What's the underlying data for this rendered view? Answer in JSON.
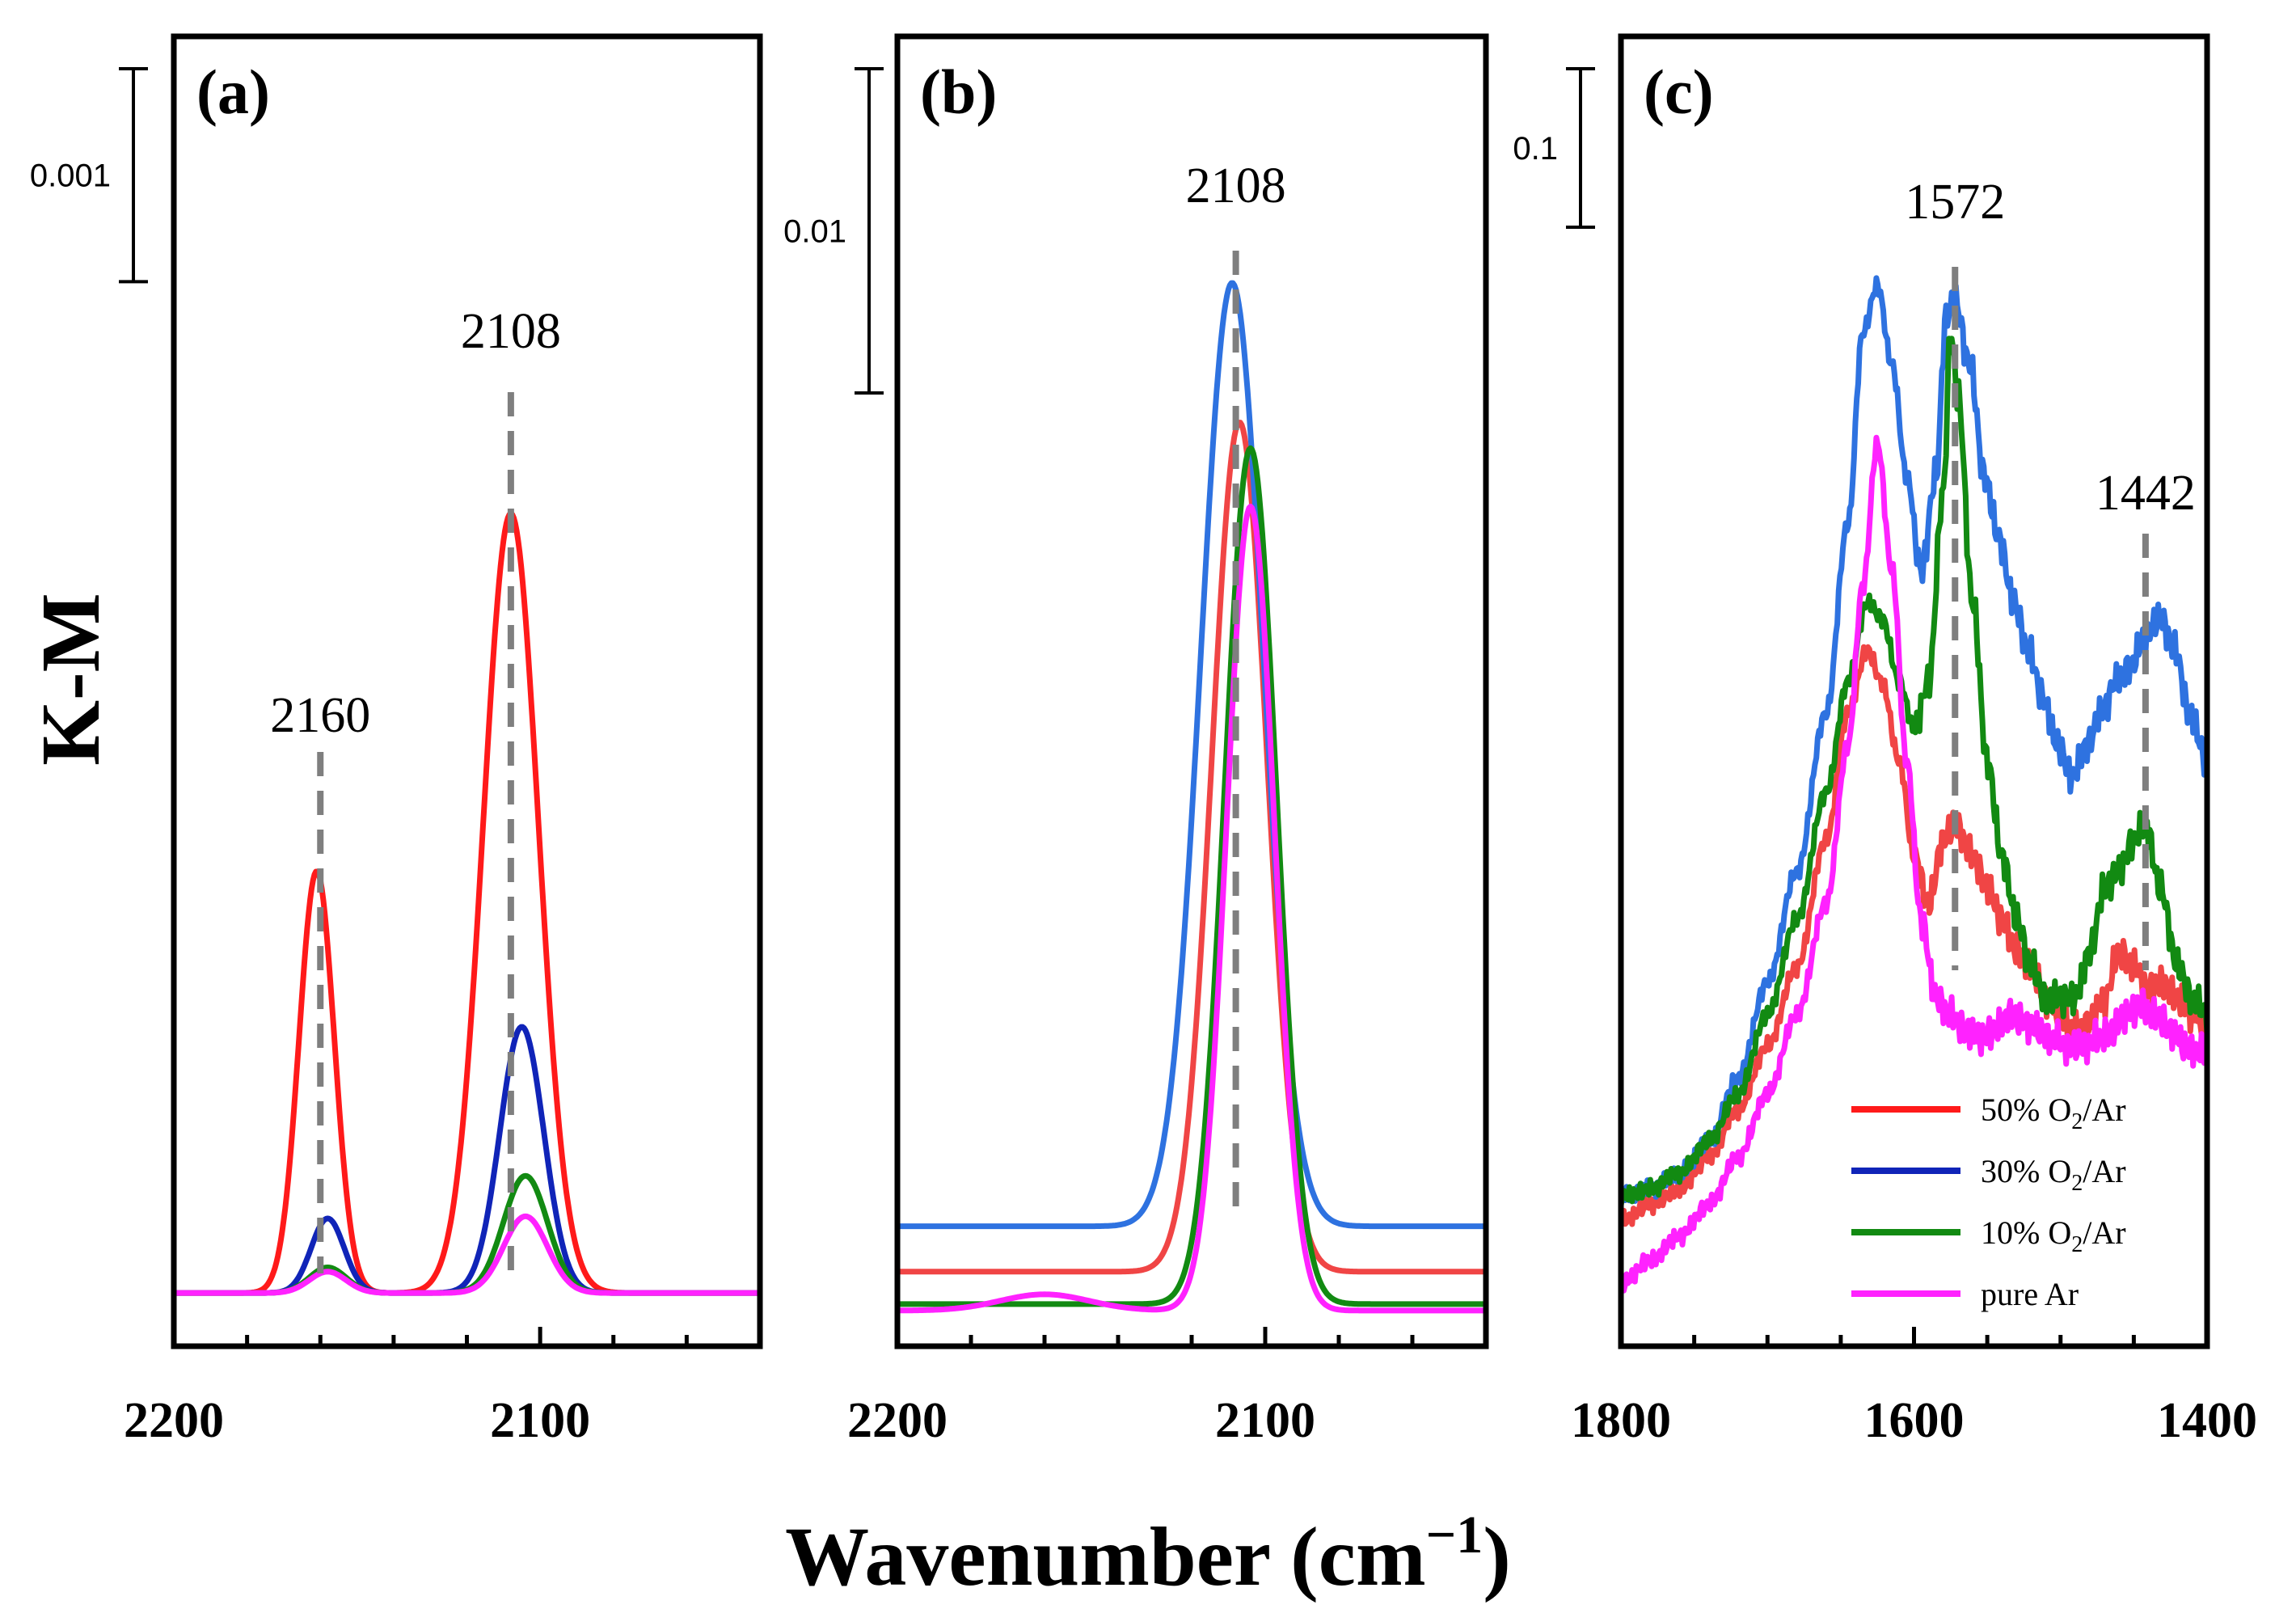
{
  "figure": {
    "xlabel_main": "Wavenumber (cm",
    "xlabel_sup": "−1",
    "xlabel_close": ")",
    "ylabel": "K-M"
  },
  "legend": [
    {
      "label_main": "50% O",
      "label_sub": "2",
      "label_end": "/Ar",
      "color": "#ff1a1a"
    },
    {
      "label_main": "30% O",
      "label_sub": "2",
      "label_end": "/Ar",
      "color": "#1024b8"
    },
    {
      "label_main": "10% O",
      "label_sub": "2",
      "label_end": "/Ar",
      "color": "#128a12"
    },
    {
      "label_main": "pure Ar",
      "label_sub": "",
      "label_end": "",
      "color": "#ff22ff"
    }
  ],
  "chart_data": [
    {
      "panel": "(a)",
      "type": "line",
      "xlim": [
        2200,
        2040
      ],
      "ylim": [
        -0.00025,
        0.0059
      ],
      "xticks": [
        2200,
        2100
      ],
      "scale_bar": {
        "label": "0.001",
        "value": 0.001
      },
      "peaks": [
        {
          "label": "2160",
          "x": 2160
        },
        {
          "label": "2108",
          "x": 2108
        }
      ],
      "series": [
        {
          "name": "50% O2/Ar",
          "color": "#ff1a1a",
          "baseline": 0,
          "peaks": [
            [
              2161,
              0.00198,
              4.8
            ],
            [
              2108,
              0.00366,
              7.5
            ]
          ]
        },
        {
          "name": "30% O2/Ar",
          "color": "#1024b8",
          "baseline": 0,
          "peaks": [
            [
              2158,
              0.00035,
              4.5
            ],
            [
              2105,
              0.00125,
              6
            ]
          ]
        },
        {
          "name": "10% O2/Ar",
          "color": "#128a12",
          "baseline": 0,
          "peaks": [
            [
              2158,
              0.00012,
              5
            ],
            [
              2104,
              0.00055,
              6
            ]
          ]
        },
        {
          "name": "pure Ar",
          "color": "#ff22ff",
          "baseline": 0,
          "peaks": [
            [
              2158,
              0.0001,
              5
            ],
            [
              2104,
              0.00036,
              6
            ]
          ]
        }
      ]
    },
    {
      "panel": "(b)",
      "type": "line",
      "xlim": [
        2200,
        2040
      ],
      "ylim": [
        -0.0011,
        0.0393
      ],
      "xticks": [
        2200,
        2100
      ],
      "scale_bar": {
        "label": "0.01",
        "value": 0.01
      },
      "peaks": [
        {
          "label": "2108",
          "x": 2108
        }
      ],
      "series": [
        {
          "name": "50% O2/Ar",
          "color": "#f04545",
          "baseline": 0.0012,
          "peaks": [
            [
              2107,
              0.0262,
              7.5
            ]
          ]
        },
        {
          "name": "30% O2/Ar",
          "color": "#2e72e0",
          "baseline": 0.0026,
          "peaks": [
            [
              2109,
              0.0291,
              8.5
            ]
          ]
        },
        {
          "name": "10% O2/Ar",
          "color": "#128a12",
          "baseline": 0.0002,
          "peaks": [
            [
              2104,
              0.0264,
              7
            ]
          ]
        },
        {
          "name": "pure Ar",
          "color": "#ff22ff",
          "baseline": 0,
          "peaks": [
            [
              2104,
              0.0248,
              6.5
            ],
            [
              2160,
              0.0005,
              12
            ]
          ]
        }
      ]
    },
    {
      "panel": "(c)",
      "type": "line",
      "xlim": [
        1800,
        1400
      ],
      "ylim": [
        -0.0193,
        0.807
      ],
      "xticks": [
        1800,
        1600,
        1400
      ],
      "scale_bar": {
        "label": "0.1",
        "value": 0.1
      },
      "peaks": [
        {
          "label": "1572",
          "x": 1572
        },
        {
          "label": "1442",
          "x": 1442
        }
      ],
      "series": [
        {
          "name": "50% O2/Ar",
          "color": "#f04545",
          "points": [
            [
              1800,
              0.06
            ],
            [
              1780,
              0.07
            ],
            [
              1760,
              0.08
            ],
            [
              1740,
              0.1
            ],
            [
              1720,
              0.13
            ],
            [
              1700,
              0.17
            ],
            [
              1680,
              0.22
            ],
            [
              1660,
              0.3
            ],
            [
              1645,
              0.38
            ],
            [
              1632,
              0.42
            ],
            [
              1622,
              0.4
            ],
            [
              1610,
              0.35
            ],
            [
              1600,
              0.29
            ],
            [
              1590,
              0.26
            ],
            [
              1580,
              0.3
            ],
            [
              1572,
              0.31
            ],
            [
              1560,
              0.29
            ],
            [
              1550,
              0.27
            ],
            [
              1540,
              0.25
            ],
            [
              1530,
              0.23
            ],
            [
              1520,
              0.22
            ],
            [
              1510,
              0.2
            ],
            [
              1500,
              0.19
            ],
            [
              1490,
              0.18
            ],
            [
              1480,
              0.185
            ],
            [
              1470,
              0.2
            ],
            [
              1460,
              0.23
            ],
            [
              1450,
              0.22
            ],
            [
              1440,
              0.205
            ],
            [
              1430,
              0.21
            ],
            [
              1420,
              0.2
            ],
            [
              1410,
              0.19
            ],
            [
              1400,
              0.185
            ]
          ]
        },
        {
          "name": "30% O2/Ar",
          "color": "#2e72e0",
          "points": [
            [
              1800,
              0.075
            ],
            [
              1780,
              0.08
            ],
            [
              1760,
              0.09
            ],
            [
              1740,
              0.11
            ],
            [
              1720,
              0.15
            ],
            [
              1700,
              0.21
            ],
            [
              1680,
              0.28
            ],
            [
              1660,
              0.38
            ],
            [
              1645,
              0.5
            ],
            [
              1635,
              0.62
            ],
            [
              1625,
              0.65
            ],
            [
              1615,
              0.6
            ],
            [
              1605,
              0.53
            ],
            [
              1595,
              0.47
            ],
            [
              1585,
              0.53
            ],
            [
              1578,
              0.63
            ],
            [
              1572,
              0.64
            ],
            [
              1562,
              0.6
            ],
            [
              1552,
              0.53
            ],
            [
              1542,
              0.49
            ],
            [
              1532,
              0.45
            ],
            [
              1522,
              0.42
            ],
            [
              1512,
              0.39
            ],
            [
              1502,
              0.36
            ],
            [
              1492,
              0.34
            ],
            [
              1482,
              0.36
            ],
            [
              1472,
              0.38
            ],
            [
              1462,
              0.4
            ],
            [
              1452,
              0.41
            ],
            [
              1442,
              0.43
            ],
            [
              1432,
              0.44
            ],
            [
              1422,
              0.42
            ],
            [
              1412,
              0.38
            ],
            [
              1400,
              0.35
            ]
          ]
        },
        {
          "name": "10% O2/Ar",
          "color": "#128a12",
          "points": [
            [
              1800,
              0.075
            ],
            [
              1780,
              0.08
            ],
            [
              1760,
              0.09
            ],
            [
              1740,
              0.11
            ],
            [
              1720,
              0.14
            ],
            [
              1700,
              0.19
            ],
            [
              1680,
              0.25
            ],
            [
              1660,
              0.33
            ],
            [
              1645,
              0.4
            ],
            [
              1632,
              0.45
            ],
            [
              1622,
              0.44
            ],
            [
              1610,
              0.4
            ],
            [
              1600,
              0.37
            ],
            [
              1590,
              0.4
            ],
            [
              1580,
              0.52
            ],
            [
              1575,
              0.62
            ],
            [
              1570,
              0.58
            ],
            [
              1560,
              0.45
            ],
            [
              1550,
              0.35
            ],
            [
              1540,
              0.29
            ],
            [
              1530,
              0.25
            ],
            [
              1520,
              0.22
            ],
            [
              1510,
              0.2
            ],
            [
              1500,
              0.2
            ],
            [
              1490,
              0.2
            ],
            [
              1480,
              0.23
            ],
            [
              1470,
              0.27
            ],
            [
              1460,
              0.28
            ],
            [
              1450,
              0.3
            ],
            [
              1442,
              0.31
            ],
            [
              1432,
              0.27
            ],
            [
              1420,
              0.22
            ],
            [
              1410,
              0.2
            ],
            [
              1400,
              0.19
            ]
          ]
        },
        {
          "name": "pure Ar",
          "color": "#ff22ff",
          "points": [
            [
              1800,
              0.02
            ],
            [
              1780,
              0.035
            ],
            [
              1760,
              0.05
            ],
            [
              1740,
              0.07
            ],
            [
              1720,
              0.1
            ],
            [
              1700,
              0.14
            ],
            [
              1680,
              0.19
            ],
            [
              1660,
              0.26
            ],
            [
              1645,
              0.36
            ],
            [
              1635,
              0.46
            ],
            [
              1625,
              0.55
            ],
            [
              1615,
              0.47
            ],
            [
              1605,
              0.35
            ],
            [
              1595,
              0.25
            ],
            [
              1585,
              0.2
            ],
            [
              1575,
              0.19
            ],
            [
              1565,
              0.18
            ],
            [
              1555,
              0.175
            ],
            [
              1545,
              0.18
            ],
            [
              1535,
              0.19
            ],
            [
              1525,
              0.185
            ],
            [
              1515,
              0.18
            ],
            [
              1505,
              0.175
            ],
            [
              1495,
              0.17
            ],
            [
              1485,
              0.17
            ],
            [
              1475,
              0.175
            ],
            [
              1465,
              0.18
            ],
            [
              1455,
              0.19
            ],
            [
              1445,
              0.195
            ],
            [
              1435,
              0.19
            ],
            [
              1425,
              0.18
            ],
            [
              1415,
              0.17
            ],
            [
              1400,
              0.165
            ]
          ]
        }
      ]
    }
  ]
}
